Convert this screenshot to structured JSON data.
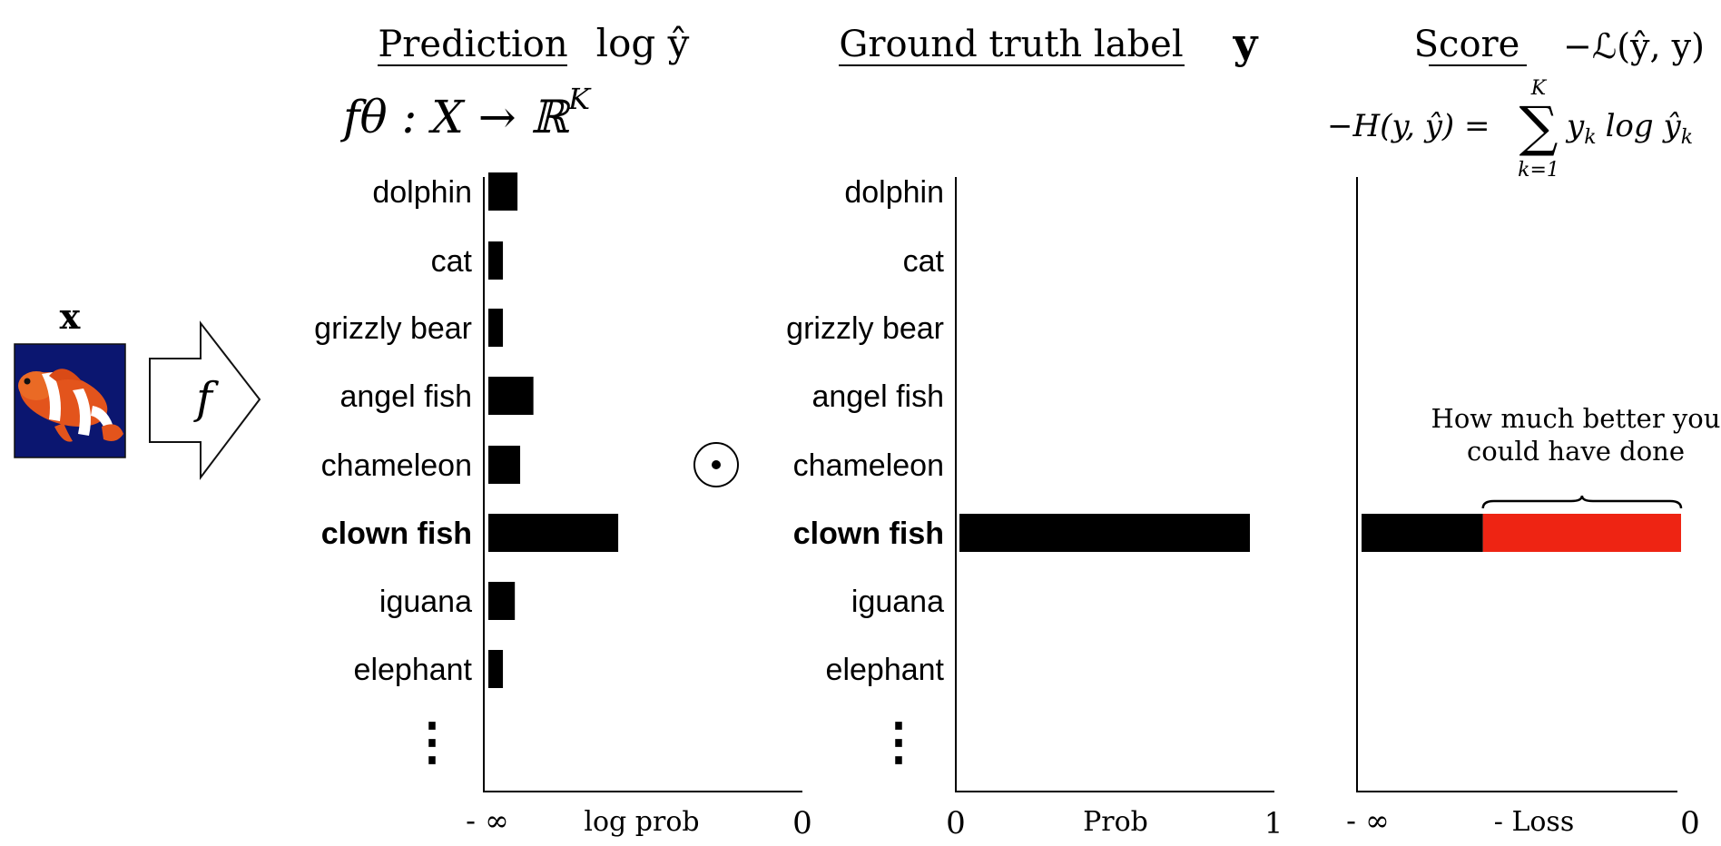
{
  "input": {
    "symbol": "x",
    "function": "f"
  },
  "operator": "⊙",
  "prediction": {
    "title": "Prediction",
    "notation": "log ŷ",
    "mapping": "fθ : X → ℝ",
    "mapping_superscript": "K",
    "axis": {
      "left": "- ∞",
      "center": "log prob",
      "right": "0"
    }
  },
  "ground_truth": {
    "title": "Ground truth label",
    "notation": "y",
    "axis": {
      "left": "0",
      "center": "Prob",
      "right": "1"
    }
  },
  "score": {
    "title": "Score",
    "notation": "−ℒ(ŷ, y)",
    "formula_lhs": "−H(y, ŷ) =",
    "formula_sum": "∑",
    "formula_upper": "K",
    "formula_lower": "k=1",
    "formula_term": "y",
    "formula_term_sub": "k",
    "formula_log": "log ŷ",
    "formula_log_sub": "k",
    "annotation_line1": "How much better you",
    "annotation_line2": "could have done",
    "axis": {
      "left": "- ∞",
      "center": "- Loss",
      "right": "0"
    },
    "colors": {
      "achieved": "#000000",
      "gap": "#ee2413"
    }
  },
  "classes": [
    "dolphin",
    "cat",
    "grizzly bear",
    "angel fish",
    "chameleon",
    "clown fish",
    "iguana",
    "elephant"
  ],
  "ellipsis": "⋮",
  "highlighted_class": "clown fish",
  "chart_data": [
    {
      "type": "bar",
      "title": "Prediction",
      "categories": [
        "dolphin",
        "cat",
        "grizzly bear",
        "angel fish",
        "chameleon",
        "clown fish",
        "iguana",
        "elephant"
      ],
      "values": [
        0.11,
        0.055,
        0.055,
        0.17,
        0.12,
        0.49,
        0.1,
        0.055
      ],
      "xlabel": "log prob",
      "xlim": [
        "- ∞",
        "0"
      ]
    },
    {
      "type": "bar",
      "title": "Ground truth label",
      "categories": [
        "dolphin",
        "cat",
        "grizzly bear",
        "angel fish",
        "chameleon",
        "clown fish",
        "iguana",
        "elephant"
      ],
      "values": [
        0,
        0,
        0,
        0,
        0,
        1,
        0,
        0
      ],
      "xlabel": "Prob",
      "xlim": [
        0,
        1
      ]
    },
    {
      "type": "bar",
      "title": "Score",
      "categories": [
        "clown fish"
      ],
      "series": [
        {
          "name": "- Loss",
          "values": [
            0.38
          ]
        },
        {
          "name": "How much better you could have done",
          "values": [
            0.62
          ]
        }
      ],
      "xlabel": "- Loss",
      "xlim": [
        "- ∞",
        "0"
      ]
    }
  ]
}
